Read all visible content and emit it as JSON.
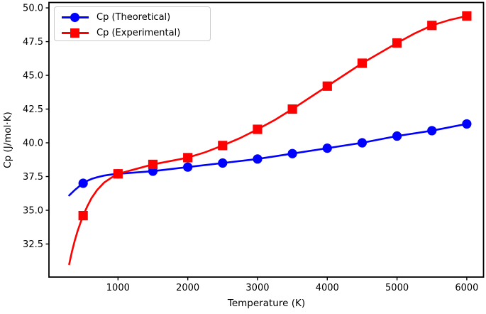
{
  "chart_data": {
    "type": "line",
    "title": "",
    "xlabel": "Temperature (K)",
    "ylabel": "Cp (J/mol·K)",
    "xlim": [
      10,
      6240
    ],
    "ylim": [
      30.05,
      50.4
    ],
    "grid": false,
    "legend": {
      "position": "upper left"
    },
    "xticks": {
      "values": [
        1000,
        2000,
        3000,
        4000,
        5000,
        6000
      ],
      "labels": [
        "1000",
        "2000",
        "3000",
        "4000",
        "5000",
        "6000"
      ]
    },
    "yticks": {
      "values": [
        32.5,
        35.0,
        37.5,
        40.0,
        42.5,
        45.0,
        47.5,
        50.0
      ],
      "labels": [
        "32.5",
        "35.0",
        "37.5",
        "40.0",
        "42.5",
        "45.0",
        "47.5",
        "50.0"
      ]
    },
    "series": [
      {
        "id": "theoretical",
        "name": "Cp (Theoretical)",
        "color": "#0000ff",
        "marker": "circle",
        "x": [
          500,
          1000,
          1500,
          2000,
          2500,
          3000,
          3500,
          4000,
          4500,
          5000,
          5500,
          6000
        ],
        "y": [
          37.0,
          37.7,
          37.9,
          38.2,
          38.5,
          38.8,
          39.2,
          39.6,
          40.0,
          40.5,
          40.9,
          41.4
        ],
        "curve_x": [
          300,
          340,
          380,
          420,
          460,
          500,
          560,
          620,
          700,
          800,
          900,
          1000,
          1250,
          1500,
          2000,
          2500,
          3000,
          3500,
          4000,
          4500,
          5000,
          5500,
          6000
        ],
        "curve_y": [
          36.1,
          36.3,
          36.5,
          36.67,
          36.85,
          37.0,
          37.18,
          37.32,
          37.45,
          37.57,
          37.65,
          37.7,
          37.8,
          37.9,
          38.2,
          38.5,
          38.8,
          39.2,
          39.6,
          40.0,
          40.5,
          40.9,
          41.4
        ]
      },
      {
        "id": "experimental",
        "name": "Cp (Experimental)",
        "color": "#ff0000",
        "marker": "square",
        "x": [
          500,
          1000,
          1500,
          2000,
          2500,
          3000,
          3500,
          4000,
          4500,
          5000,
          5500,
          6000
        ],
        "y": [
          34.6,
          37.7,
          38.4,
          38.9,
          39.8,
          41.0,
          42.5,
          44.2,
          45.9,
          47.4,
          48.7,
          49.4
        ],
        "curve_x": [
          300,
          340,
          380,
          420,
          460,
          500,
          560,
          620,
          700,
          800,
          900,
          1000,
          1250,
          1500,
          1750,
          2000,
          2250,
          2500,
          2750,
          3000,
          3250,
          3500,
          3750,
          4000,
          4250,
          4500,
          4750,
          5000,
          5250,
          5500,
          5750,
          6000
        ],
        "curve_y": [
          31.0,
          31.95,
          32.75,
          33.45,
          34.05,
          34.6,
          35.3,
          35.9,
          36.5,
          37.05,
          37.4,
          37.7,
          38.05,
          38.4,
          38.65,
          38.9,
          39.3,
          39.8,
          40.35,
          41.0,
          41.7,
          42.5,
          43.35,
          44.2,
          45.05,
          45.9,
          46.65,
          47.4,
          48.1,
          48.7,
          49.1,
          49.4
        ]
      }
    ]
  }
}
